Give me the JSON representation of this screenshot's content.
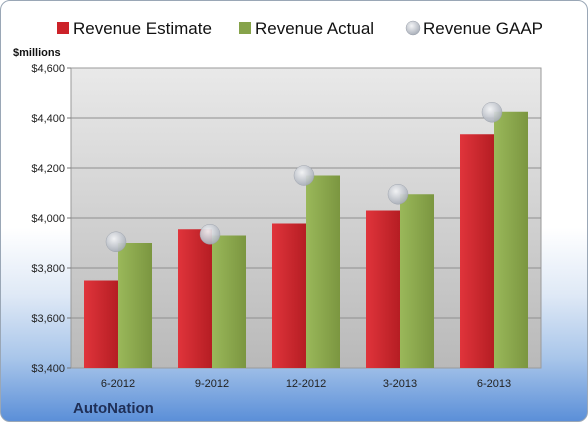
{
  "chart_data": {
    "type": "bar",
    "categories": [
      "6-2012",
      "9-2012",
      "12-2012",
      "3-2013",
      "6-2013"
    ],
    "series": [
      {
        "name": "Revenue Estimate",
        "kind": "bar",
        "color": "#cc2229",
        "values": [
          3750,
          3955,
          3978,
          4030,
          4335
        ]
      },
      {
        "name": "Revenue Actual",
        "kind": "bar",
        "color": "#86a34a",
        "values": [
          3900,
          3930,
          4170,
          4095,
          4425
        ]
      },
      {
        "name": "Revenue GAAP",
        "kind": "marker",
        "color": "#c8ccd3",
        "values": [
          3905,
          3935,
          4170,
          4095,
          4423
        ]
      }
    ],
    "ylabel": "$millions",
    "ylim": [
      3400,
      4600
    ],
    "yticks": [
      3400,
      3600,
      3800,
      4000,
      4200,
      4400,
      4600
    ],
    "ytick_labels": [
      "$3,400",
      "$3,600",
      "$3,800",
      "$4,000",
      "$4,200",
      "$4,400",
      "$4,600"
    ],
    "grid": true,
    "legend_position": "top"
  },
  "brand": "AutoNation"
}
